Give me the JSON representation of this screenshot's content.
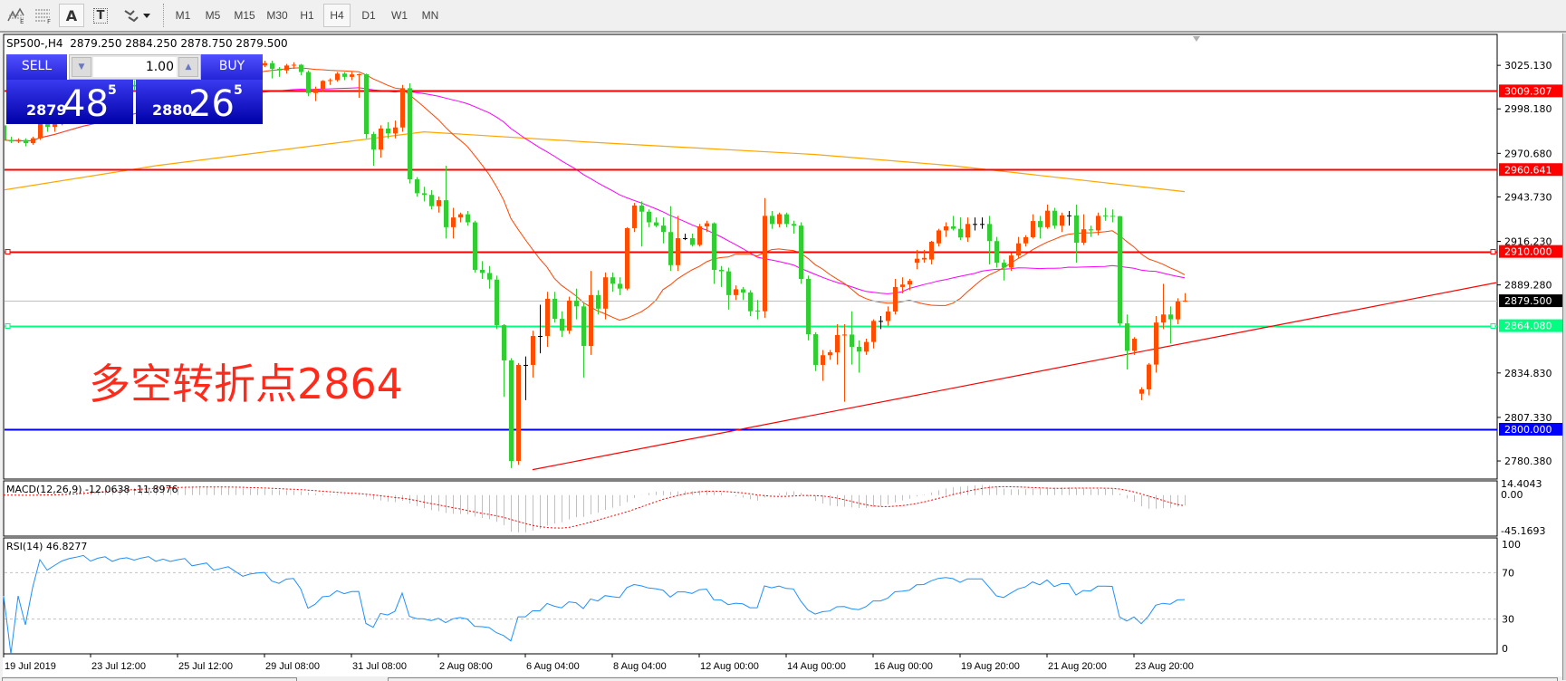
{
  "toolbar": {
    "icons": [
      "elliott-wave-icon",
      "fibonacci-fan-icon",
      "text-label-icon",
      "text-box-icon",
      "arrows-dropdown-icon"
    ],
    "text_label_glyph": "A",
    "text_box_glyph": "T",
    "timeframes": [
      "M1",
      "M5",
      "M15",
      "M30",
      "H1",
      "H4",
      "D1",
      "W1",
      "MN"
    ],
    "active_timeframe": "H4"
  },
  "chart_header": {
    "symbol_line": "SP500-,H4  2879.250 2884.250 2878.750 2879.500"
  },
  "trade_panel": {
    "sell_label": "SELL",
    "buy_label": "BUY",
    "lot": "1.00",
    "sell_price": {
      "prefix": "2879",
      "big": "48",
      "sup": "5"
    },
    "buy_price": {
      "prefix": "2880",
      "big": "26",
      "sup": "5"
    },
    "color_top": "#5050ff",
    "color_bottom": "#0000a8"
  },
  "annotation": "多空转折点2864",
  "indicators": {
    "macd_label": "MACD(12,26,9) -12.0638 -11.8976",
    "rsi_label": "RSI(14) 46.8277"
  },
  "chart_data": {
    "type": "candlestick",
    "symbol": "SP500-",
    "timeframe": "H4",
    "price_ticks": [
      "3025.130",
      "2998.180",
      "2970.680",
      "2943.730",
      "2916.230",
      "2889.280",
      "2834.830",
      "2807.330",
      "2780.380"
    ],
    "x_ticks": [
      "19 Jul 2019",
      "23 Jul 12:00",
      "25 Jul 12:00",
      "29 Jul 08:00",
      "31 Jul 08:00",
      "2 Aug 08:00",
      "6 Aug 04:00",
      "8 Aug 04:00",
      "12 Aug 00:00",
      "14 Aug 00:00",
      "16 Aug 00:00",
      "19 Aug 20:00",
      "21 Aug 20:00",
      "23 Aug 20:00"
    ],
    "candle_colors": {
      "up": "#ff4d00",
      "down": "#32cd32",
      "doji": "#000000"
    },
    "horizontal_levels": [
      {
        "price": "3009.307",
        "color": "#ff0000",
        "text_color": "#ffffff"
      },
      {
        "price": "2960.641",
        "color": "#ff0000",
        "text_color": "#ffffff"
      },
      {
        "price": "2910.000",
        "color": "#ff0000",
        "text_color": "#ffffff",
        "marked": true
      },
      {
        "price": "2879.500",
        "color": "#000000",
        "text_color": "#ffffff",
        "line_color": "#c0c0c0"
      },
      {
        "price": "2864.080",
        "color": "#00ff80",
        "text_color": "#ffffff",
        "marked": true
      },
      {
        "price": "2800.000",
        "color": "#0000ff",
        "text_color": "#ffffff"
      }
    ],
    "trendline": {
      "color": "#ff0000",
      "points": [
        {
          "bar": 73,
          "price": 2775
        },
        {
          "bar": 206,
          "price": 2890.7
        }
      ]
    },
    "moving_averages": [
      {
        "color": "#ff4500",
        "period": 21
      },
      {
        "color": "#ff00ff",
        "period": 55
      },
      {
        "color": "#ffa500",
        "points": [
          [
            0,
            2948
          ],
          [
            21,
            2963
          ],
          [
            58,
            2984
          ],
          [
            81,
            2977.6
          ],
          [
            112,
            2970
          ],
          [
            131,
            2963
          ],
          [
            163,
            2947
          ]
        ]
      }
    ],
    "macd": {
      "fast": 12,
      "slow": 26,
      "signal": 9,
      "main": -12.0638,
      "signal_value": -11.8976,
      "scale_max": "14.4043",
      "zero": "0.00",
      "scale_min": "-45.1693",
      "hist_color": "#c0c0c0",
      "signal_color": "#ff0000"
    },
    "rsi": {
      "period": 14,
      "value": 46.8277,
      "levels": [
        "100",
        "70",
        "30",
        "0"
      ],
      "color": "#1e90ff"
    },
    "candles": [
      [
        2988,
        2990,
        2978,
        2979
      ],
      [
        2979,
        2981,
        2977,
        2978
      ],
      [
        2978,
        2980,
        2977,
        2979
      ],
      [
        2979,
        2980,
        2975,
        2977
      ],
      [
        2977,
        2981,
        2976,
        2980
      ],
      [
        2980,
        2991,
        2979,
        2989
      ],
      [
        2989,
        2993,
        2984,
        2987
      ],
      [
        2987,
        2991,
        2984,
        2990
      ],
      [
        2990,
        2996,
        2988,
        2994
      ],
      [
        2994,
        2999,
        2992,
        2997
      ],
      [
        2997,
        3001,
        2994,
        2999
      ],
      [
        2999,
        3004,
        2997,
        3002
      ],
      [
        3002,
        3006,
        2999,
        3000
      ],
      [
        3000,
        3007,
        2999,
        3005
      ],
      [
        3005,
        3010,
        3003,
        3008
      ],
      [
        3008,
        3010,
        3004,
        3006
      ],
      [
        3006,
        3012,
        3005,
        3011
      ],
      [
        3011,
        3015,
        3009,
        3013
      ],
      [
        3013,
        3016,
        3010,
        3012
      ],
      [
        3012,
        3018,
        3011,
        3016
      ],
      [
        3016,
        3020,
        3014,
        3019
      ],
      [
        3019,
        3021,
        3015,
        3017
      ],
      [
        3017,
        3022,
        3016,
        3021
      ],
      [
        3021,
        3024,
        3018,
        3020
      ],
      [
        3020,
        3025,
        3019,
        3023
      ],
      [
        3023,
        3027,
        3021,
        3025
      ],
      [
        3025,
        3027,
        3021,
        3022
      ],
      [
        3022,
        3026,
        3021,
        3024
      ],
      [
        3024,
        3028,
        3022,
        3026
      ],
      [
        3026,
        3027,
        3022,
        3023
      ],
      [
        3023,
        3027,
        3022,
        3025
      ],
      [
        3025,
        3029,
        3023,
        3027
      ],
      [
        3027,
        3029,
        3024,
        3025
      ],
      [
        3025,
        3028,
        3022,
        3023
      ],
      [
        3023,
        3027,
        3021,
        3025
      ],
      [
        3025,
        3028,
        3023,
        3026
      ],
      [
        3025,
        3028,
        3024,
        3026.5
      ],
      [
        3026.5,
        3028,
        3017,
        3023
      ],
      [
        3023,
        3024,
        3018,
        3022
      ],
      [
        3022,
        3026,
        3020,
        3025
      ],
      [
        3025,
        3027,
        3023,
        3025.5
      ],
      [
        3025.5,
        3026,
        3019,
        3021
      ],
      [
        3021,
        3022,
        3006,
        3008
      ],
      [
        3008,
        3012,
        3003,
        3010.5
      ],
      [
        3010.5,
        3016,
        3009,
        3015.5
      ],
      [
        3015.5,
        3017,
        3013,
        3016
      ],
      [
        3016,
        3021,
        3015,
        3020
      ],
      [
        3020,
        3021,
        3016,
        3018
      ],
      [
        3018,
        3021,
        3016,
        3019.5
      ],
      [
        3019.5,
        3020,
        3005,
        3019.6
      ],
      [
        3019.6,
        3020,
        2980,
        2982.6
      ],
      [
        2982.6,
        2984,
        2963,
        2973
      ],
      [
        2973,
        2988,
        2968,
        2986
      ],
      [
        2986,
        2990,
        2980,
        2983
      ],
      [
        2983,
        2991,
        2980,
        2986.7
      ],
      [
        2986.7,
        3013,
        2984,
        3011
      ],
      [
        3011,
        3014,
        2952,
        2954.6
      ],
      [
        2954.6,
        2956,
        2944,
        2946
      ],
      [
        2946,
        2950,
        2941,
        2945
      ],
      [
        2945,
        2948,
        2936,
        2938
      ],
      [
        2938,
        2944,
        2934,
        2941.7
      ],
      [
        2941.7,
        2963,
        2918,
        2925
      ],
      [
        2925,
        2937,
        2918,
        2931
      ],
      [
        2931,
        2934,
        2928,
        2933
      ],
      [
        2933,
        2935,
        2926,
        2928
      ],
      [
        2928,
        2929,
        2897,
        2898.6
      ],
      [
        2898.6,
        2904,
        2893,
        2896.7
      ],
      [
        2896.7,
        2901,
        2887,
        2892.6
      ],
      [
        2892.6,
        2895,
        2862,
        2864.4
      ],
      [
        2864.4,
        2865,
        2820,
        2842.6
      ],
      [
        2842.6,
        2844,
        2776,
        2780.4
      ],
      [
        2780.4,
        2841,
        2778,
        2839.8
      ],
      [
        2839.8,
        2845,
        2818,
        2839.8
      ],
      [
        2839.8,
        2861,
        2832,
        2857.7
      ],
      [
        2857.7,
        2877,
        2847,
        2857.7
      ],
      [
        2857.7,
        2885,
        2851,
        2880.7
      ],
      [
        2880.7,
        2885,
        2866,
        2868.3
      ],
      [
        2868.3,
        2873,
        2857,
        2861
      ],
      [
        2861,
        2882,
        2859,
        2879.6
      ],
      [
        2879.6,
        2887,
        2868,
        2876
      ],
      [
        2876,
        2878,
        2832,
        2851.5
      ],
      [
        2851.5,
        2898,
        2846,
        2883
      ],
      [
        2883,
        2886,
        2871,
        2874.6
      ],
      [
        2874.6,
        2897,
        2868,
        2894
      ],
      [
        2894,
        2897,
        2885,
        2890
      ],
      [
        2890,
        2894,
        2883,
        2887
      ],
      [
        2887,
        2925,
        2886,
        2924.4
      ],
      [
        2924.4,
        2940,
        2922,
        2938.4
      ],
      [
        2938.4,
        2941,
        2913,
        2934.6
      ],
      [
        2934.6,
        2936,
        2925,
        2928
      ],
      [
        2928,
        2931,
        2925,
        2926
      ],
      [
        2926,
        2931,
        2915,
        2922
      ],
      [
        2922,
        2938,
        2898,
        2901.5
      ],
      [
        2901.5,
        2932,
        2898,
        2918.2
      ],
      [
        2918.2,
        2921,
        2917,
        2918.2
      ],
      [
        2918.2,
        2921,
        2913,
        2914
      ],
      [
        2914,
        2927,
        2913,
        2925.5
      ],
      [
        2925.5,
        2929,
        2922,
        2927.4
      ],
      [
        2927.4,
        2928,
        2890,
        2898.6
      ],
      [
        2898.6,
        2901,
        2888,
        2897.7
      ],
      [
        2897.7,
        2900,
        2874,
        2883
      ],
      [
        2883,
        2889,
        2880,
        2886.6
      ],
      [
        2886.6,
        2888,
        2880,
        2884.6
      ],
      [
        2884.6,
        2886,
        2870,
        2873
      ],
      [
        2873.4,
        2880,
        2868,
        2873
      ],
      [
        2873,
        2943,
        2869,
        2932
      ],
      [
        2932,
        2935,
        2924,
        2927
      ],
      [
        2927,
        2934,
        2925,
        2933
      ],
      [
        2933,
        2934,
        2925,
        2927
      ],
      [
        2927,
        2929,
        2921,
        2926
      ],
      [
        2926,
        2928,
        2890,
        2893
      ],
      [
        2893,
        2895,
        2855,
        2858.8
      ],
      [
        2858.8,
        2860,
        2836,
        2839.8
      ],
      [
        2839.8,
        2849,
        2830,
        2845.8
      ],
      [
        2845.8,
        2849,
        2843,
        2847.6
      ],
      [
        2847.6,
        2865,
        2840,
        2858.3
      ],
      [
        2858,
        2865,
        2817,
        2858.6
      ],
      [
        2858.6,
        2873,
        2840,
        2851
      ],
      [
        2851,
        2855,
        2835,
        2848
      ],
      [
        2848,
        2856,
        2846,
        2854
      ],
      [
        2854,
        2868,
        2850,
        2867
      ],
      [
        2867,
        2870,
        2862,
        2867
      ],
      [
        2867,
        2876,
        2864,
        2872.8
      ],
      [
        2872.8,
        2893,
        2871,
        2888
      ],
      [
        2888,
        2894,
        2884,
        2889.5
      ],
      [
        2889.5,
        2893,
        2886,
        2891.8
      ],
      [
        2903,
        2911,
        2899,
        2905.5
      ],
      [
        2905,
        2911,
        2903,
        2906
      ],
      [
        2905,
        2916.5,
        2902,
        2916
      ],
      [
        2915,
        2924,
        2913,
        2923
      ],
      [
        2923,
        2928,
        2919,
        2925.5
      ],
      [
        2925.5,
        2932,
        2923,
        2924
      ],
      [
        2924,
        2931,
        2917,
        2918.6
      ],
      [
        2918.6,
        2931,
        2916,
        2927
      ],
      [
        2927,
        2931,
        2923,
        2927
      ],
      [
        2927,
        2931,
        2924,
        2927
      ],
      [
        2927,
        2932,
        2902,
        2916.4
      ],
      [
        2916.4,
        2919,
        2900,
        2903
      ],
      [
        2903,
        2905,
        2892,
        2900
      ],
      [
        2900,
        2909,
        2898,
        2907.5
      ],
      [
        2907.5,
        2919,
        2906,
        2915
      ],
      [
        2915,
        2920,
        2913,
        2918.8
      ],
      [
        2918.8,
        2933,
        2918,
        2928.8
      ],
      [
        2928.8,
        2932,
        2918,
        2925
      ],
      [
        2925,
        2939,
        2924,
        2935.2
      ],
      [
        2935.2,
        2937,
        2924,
        2926
      ],
      [
        2926,
        2934,
        2922,
        2932.3
      ],
      [
        2932.3,
        2935,
        2926,
        2932.3
      ],
      [
        2932.3,
        2939,
        2903,
        2915.4
      ],
      [
        2915.4,
        2933,
        2914,
        2923.7
      ],
      [
        2923.7,
        2926,
        2919,
        2923
      ],
      [
        2923,
        2934,
        2920,
        2932
      ],
      [
        2932.3,
        2937,
        2929,
        2932
      ],
      [
        2932,
        2936,
        2928,
        2931.8
      ],
      [
        2931.8,
        2932,
        2864,
        2865.5
      ],
      [
        2865.5,
        2871,
        2837,
        2848.5
      ],
      [
        2848.5,
        2857,
        2846,
        2856
      ],
      [
        2822,
        2826,
        2818,
        2824.7
      ],
      [
        2824.7,
        2841,
        2821,
        2840
      ],
      [
        2840,
        2870,
        2835,
        2866
      ],
      [
        2866,
        2890,
        2862,
        2871
      ],
      [
        2871,
        2876,
        2853,
        2868
      ],
      [
        2868,
        2881,
        2865,
        2879
      ],
      [
        2879.25,
        2884.25,
        2878.75,
        2879.5
      ]
    ]
  }
}
